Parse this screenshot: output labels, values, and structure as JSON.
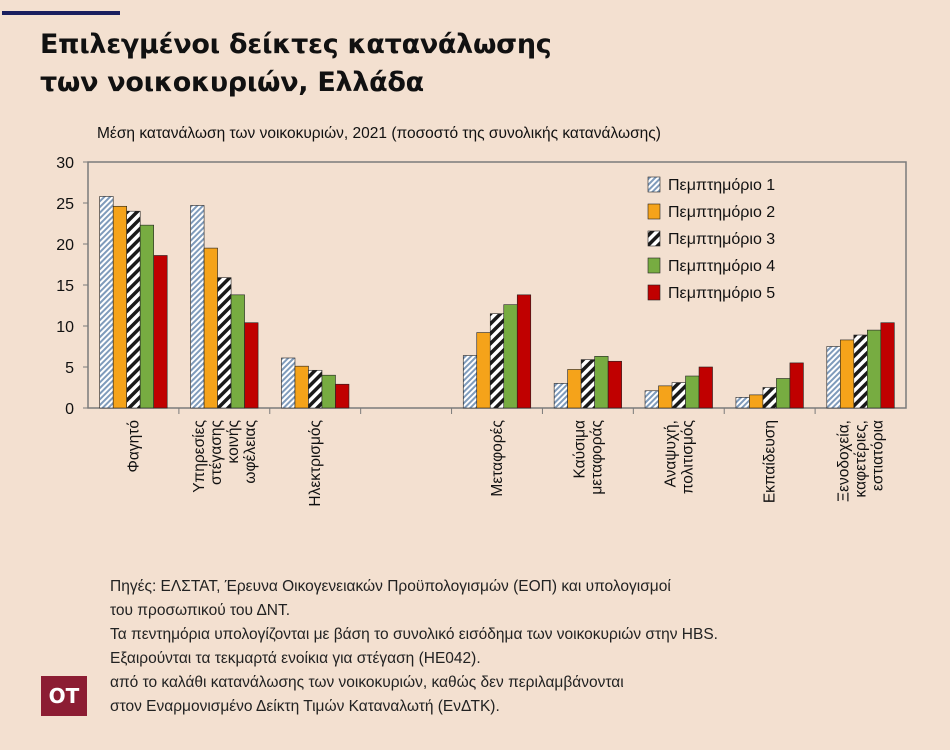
{
  "header": {
    "title_line1": "Επιλεγμένοι δείκτες κατανάλωσης",
    "title_line2": "των νοικοκυριών, Ελλάδα"
  },
  "footer": {
    "notes": [
      "Πηγές: ΕΛΣΤΑΤ, Έρευνα Οικογενειακών Προϋπολογισμών (ΕΟΠ) και υπολογισμοί",
      "του προσωπικού του ΔΝΤ.",
      "Τα πεντημόρια υπολογίζονται με βάση το συνολικό εισόδημα των νοικοκυριών στην HBS.",
      "Εξαιρούνται τα τεκμαρτά ενοίκια για στέγαση (HE042).",
      "από το καλάθι κατανάλωσης των νοικοκυριών, καθώς δεν περιλαμβάνονται",
      "στον Εναρμονισμένο Δείκτη Τιμών Καταναλωτή (ΕνΔΤΚ)."
    ],
    "logo_text": "OT"
  },
  "chart_data": {
    "type": "bar",
    "subtitle": "Μέση κατανάλωση των νοικοκυριών, 2021 (ποσοστό της συνολικής κατανάλωσης)",
    "ylim": [
      0,
      30
    ],
    "yticks": [
      0,
      5,
      10,
      15,
      20,
      25,
      30
    ],
    "grid": false,
    "legend_position": "top-right",
    "categories": [
      [
        "Φαγητό"
      ],
      [
        "Υπηρεσίες",
        "στέγασης",
        "κοινής",
        "ωφέλειας"
      ],
      [
        "Ηλεκτρισμός"
      ],
      [
        ""
      ],
      [
        "Μεταφορές"
      ],
      [
        "Καύσιμα",
        "μεταφοράς"
      ],
      [
        "Αναψυχή,",
        "πολιτισμός"
      ],
      [
        "Εκπαίδευση"
      ],
      [
        "Ξενοδοχεία,",
        "καφετέριες,",
        "εστιατόρια"
      ]
    ],
    "series": [
      {
        "name": "Πεμπτημόριο 1",
        "color": "#b7c9dc",
        "pattern": "dense-hatch",
        "values": [
          25.8,
          24.7,
          6.1,
          null,
          6.4,
          3.0,
          2.1,
          1.3,
          7.5
        ]
      },
      {
        "name": "Πεμπτημόριο 2",
        "color": "#f5a31a",
        "pattern": "solid",
        "values": [
          24.6,
          19.5,
          5.1,
          null,
          9.2,
          4.7,
          2.7,
          1.6,
          8.3
        ]
      },
      {
        "name": "Πεμπτημόριο 3",
        "color": "#222222",
        "pattern": "wide-stripes",
        "values": [
          24.0,
          15.9,
          4.6,
          null,
          11.5,
          5.9,
          3.1,
          2.5,
          8.9
        ]
      },
      {
        "name": "Πεμπτημόριο 4",
        "color": "#77ac41",
        "pattern": "solid",
        "values": [
          22.3,
          13.8,
          4.0,
          null,
          12.6,
          6.3,
          3.9,
          3.6,
          9.5
        ]
      },
      {
        "name": "Πεμπτημόριο 5",
        "color": "#c00000",
        "pattern": "solid",
        "values": [
          18.6,
          10.4,
          2.9,
          null,
          13.8,
          5.7,
          5.0,
          5.5,
          10.4
        ]
      }
    ]
  }
}
